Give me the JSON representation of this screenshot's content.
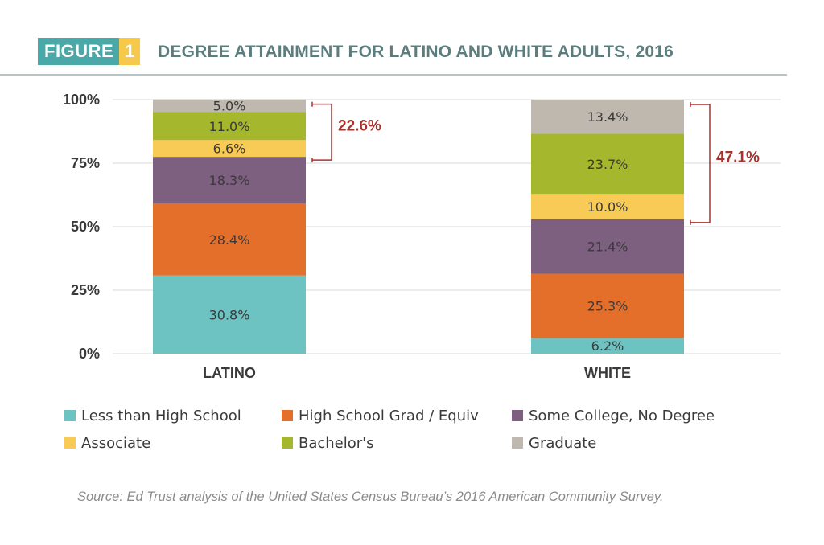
{
  "header": {
    "figure_word": "FIGURE",
    "figure_number": "1",
    "title": "DEGREE ATTAINMENT FOR LATINO AND WHITE ADULTS, 2016"
  },
  "chart_data": {
    "type": "bar",
    "stacked": true,
    "categories": [
      "LATINO",
      "WHITE"
    ],
    "ylim": [
      0,
      100
    ],
    "yticks": [
      0,
      25,
      50,
      75,
      100
    ],
    "ytick_labels": [
      "0%",
      "25%",
      "50%",
      "75%",
      "100%"
    ],
    "grid": true,
    "series": [
      {
        "name": "Less than High School",
        "color": "#6cc3c1",
        "values": [
          30.8,
          6.2
        ],
        "labels": [
          "30.8%",
          "6.2%"
        ]
      },
      {
        "name": "High School Grad / Equiv",
        "color": "#e36f2a",
        "values": [
          28.4,
          25.3
        ],
        "labels": [
          "28.4%",
          "25.3%"
        ]
      },
      {
        "name": "Some College, No Degree",
        "color": "#7d5f80",
        "values": [
          18.3,
          21.4
        ],
        "labels": [
          "18.3%",
          "21.4%"
        ]
      },
      {
        "name": "Associate",
        "color": "#f8cb57",
        "values": [
          6.6,
          10.0
        ],
        "labels": [
          "6.6%",
          "10.0%"
        ]
      },
      {
        "name": "Bachelor's",
        "color": "#a4b72d",
        "values": [
          11.0,
          23.7
        ],
        "labels": [
          "11.0%",
          "23.7%"
        ]
      },
      {
        "name": "Graduate",
        "color": "#bfb8ae",
        "values": [
          5.0,
          13.4
        ],
        "labels": [
          "5.0%",
          "13.4%"
        ]
      }
    ],
    "annotations": [
      {
        "category": "LATINO",
        "from_series": 3,
        "text": "22.6%",
        "color": "#a9322d"
      },
      {
        "category": "WHITE",
        "from_series": 3,
        "text": "47.1%",
        "color": "#a9322d"
      }
    ],
    "legend_placement": "bottom"
  },
  "source": "Source: Ed Trust analysis of the United States Census Bureau’s 2016 American Community Survey."
}
